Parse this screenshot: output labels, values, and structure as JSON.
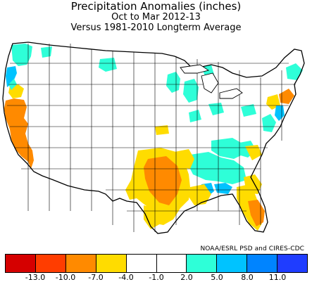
{
  "title": "Precipitation Anomalies (inches)",
  "subtitle_period": "Oct to Mar 2012-13",
  "subtitle_baseline": "Versus 1981-2010 Longterm Average",
  "credit": "NOAA/ESRL PSD and CIRES-CDC",
  "legend": {
    "colors": [
      "#d50000",
      "#ff3d00",
      "#ff8a00",
      "#ffdc00",
      "#ffffff",
      "#ffffff",
      "#2effd8",
      "#00c3ff",
      "#0084ff",
      "#1f3dff"
    ],
    "ticks": [
      "-13.0",
      "-10.0",
      "-7.0",
      "-4.0",
      "-1.0",
      "2.0",
      "5.0",
      "8.0",
      "11.0"
    ]
  },
  "map_colors": {
    "dry_severe": "#ff8a00",
    "dry_moderate": "#ffdc00",
    "wet_moderate": "#2effd8",
    "wet_strong": "#00c3ff",
    "neutral": "#ffffff",
    "lines": "#000000"
  }
}
